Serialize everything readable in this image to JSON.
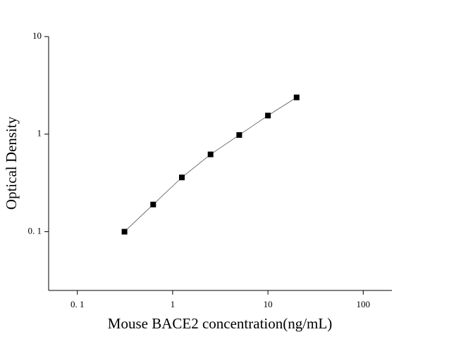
{
  "chart_data": {
    "type": "scatter",
    "x_label": "Mouse BACE2 concentration(ng/mL)",
    "y_label": "Optical Density",
    "x": [
      0.3125,
      0.625,
      1.25,
      2.5,
      5,
      10,
      20
    ],
    "values": [
      0.1,
      0.19,
      0.36,
      0.62,
      0.98,
      1.55,
      2.38
    ],
    "color": "#000000",
    "x_log": true,
    "y_log": true,
    "xlim": [
      0.05,
      200
    ],
    "ylim": [
      0.025,
      10
    ],
    "xticks": [
      {
        "value": 0.1,
        "label": "0. 1"
      },
      1,
      10,
      100
    ],
    "yticks": [
      {
        "value": 0.1,
        "label": "0. 1"
      },
      1,
      10
    ]
  }
}
